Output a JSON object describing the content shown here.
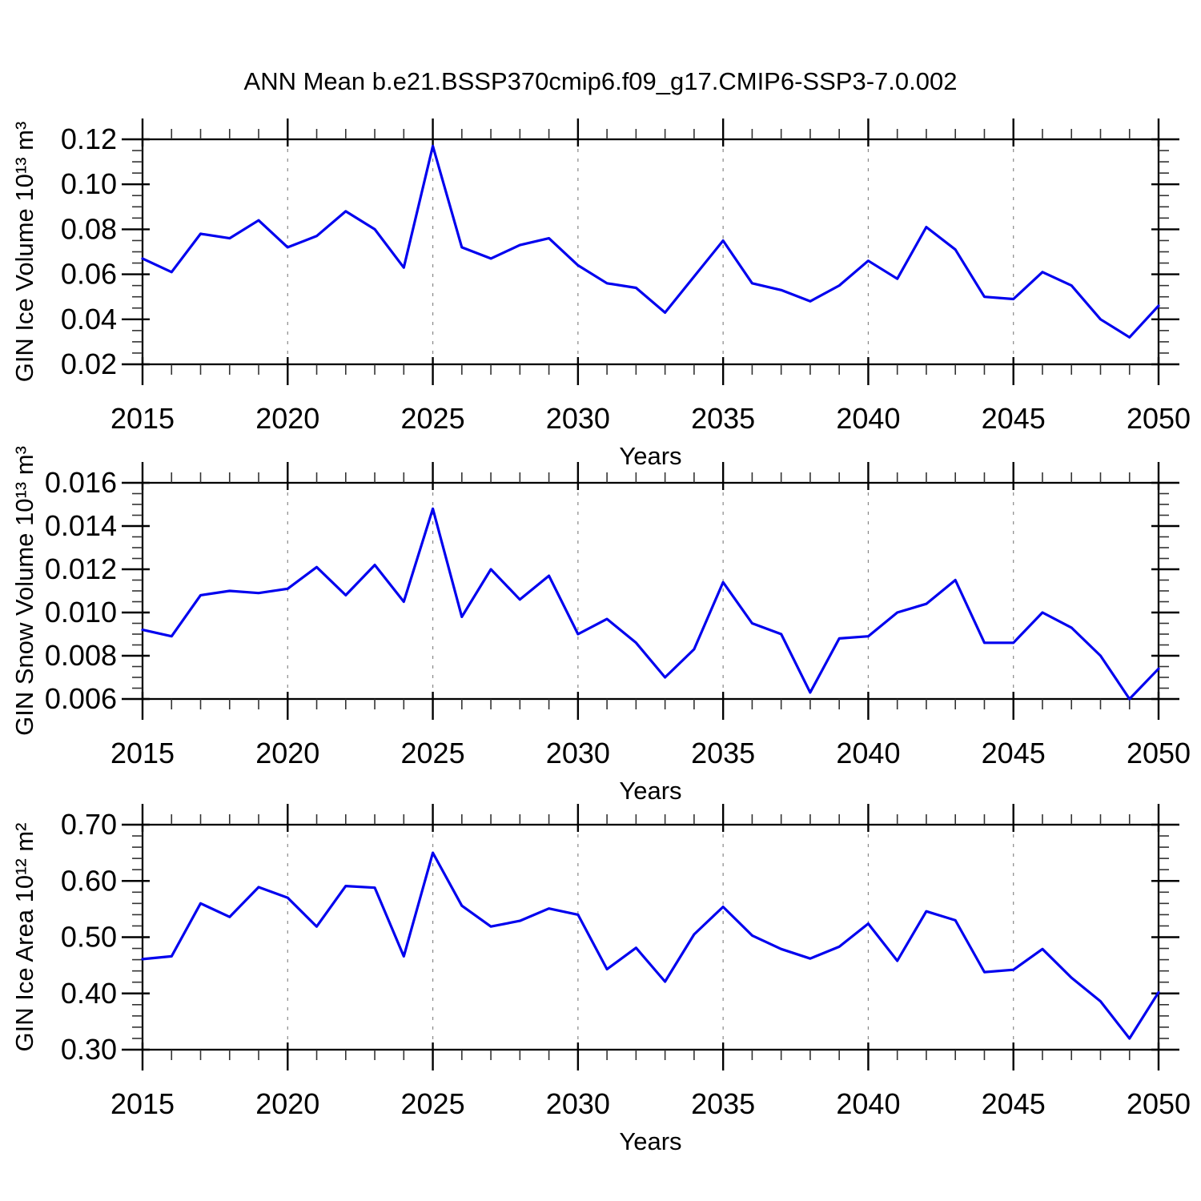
{
  "title": "ANN Mean b.e21.BSSP370cmip6.f09_g17.CMIP6-SSP3-7.0.002",
  "figure": {
    "background": "#ffffff",
    "line_color": "#0000ee",
    "grid_color": "#888888",
    "axis_color": "#000000",
    "minor_tick_color": "#333333",
    "text_color": "#000000"
  },
  "chart_data": [
    {
      "type": "line",
      "name": "gin-ice-volume",
      "ylabel": "GIN Ice Volume 10¹³ m³",
      "xlabel": "Years",
      "legend": "none",
      "grid": "vertical-dashed",
      "ylim": [
        0.02,
        0.12
      ],
      "yticks": [
        0.02,
        0.04,
        0.06,
        0.08,
        0.1,
        0.12
      ],
      "ytick_labels": [
        "0.02",
        "0.04",
        "0.06",
        "0.08",
        "0.10",
        "0.12"
      ],
      "yminor_step": 0.005,
      "xlim": [
        2015,
        2050
      ],
      "xticks": [
        2015,
        2020,
        2025,
        2030,
        2035,
        2040,
        2045,
        2050
      ],
      "xtick_labels": [
        "2015",
        "2020",
        "2025",
        "2030",
        "2035",
        "2040",
        "2045",
        "2050"
      ],
      "xminor_step": 1,
      "x": [
        2015,
        2016,
        2017,
        2018,
        2019,
        2020,
        2021,
        2022,
        2023,
        2024,
        2025,
        2026,
        2027,
        2028,
        2029,
        2030,
        2031,
        2032,
        2033,
        2034,
        2035,
        2036,
        2037,
        2038,
        2039,
        2040,
        2041,
        2042,
        2043,
        2044,
        2045,
        2046,
        2047,
        2048,
        2049,
        2050
      ],
      "values": [
        0.067,
        0.061,
        0.078,
        0.076,
        0.084,
        0.072,
        0.077,
        0.088,
        0.08,
        0.063,
        0.117,
        0.072,
        0.067,
        0.073,
        0.076,
        0.064,
        0.056,
        0.054,
        0.043,
        0.059,
        0.075,
        0.056,
        0.053,
        0.048,
        0.055,
        0.066,
        0.058,
        0.081,
        0.071,
        0.05,
        0.049,
        0.061,
        0.055,
        0.04,
        0.032,
        0.046
      ]
    },
    {
      "type": "line",
      "name": "gin-snow-volume",
      "ylabel": "GIN Snow Volume 10¹³ m³",
      "xlabel": "Years",
      "legend": "none",
      "grid": "vertical-dashed",
      "ylim": [
        0.006,
        0.016
      ],
      "yticks": [
        0.006,
        0.008,
        0.01,
        0.012,
        0.014,
        0.016
      ],
      "ytick_labels": [
        "0.006",
        "0.008",
        "0.010",
        "0.012",
        "0.014",
        "0.016"
      ],
      "yminor_step": 0.0005,
      "xlim": [
        2015,
        2050
      ],
      "xticks": [
        2015,
        2020,
        2025,
        2030,
        2035,
        2040,
        2045,
        2050
      ],
      "xtick_labels": [
        "2015",
        "2020",
        "2025",
        "2030",
        "2035",
        "2040",
        "2045",
        "2050"
      ],
      "xminor_step": 1,
      "x": [
        2015,
        2016,
        2017,
        2018,
        2019,
        2020,
        2021,
        2022,
        2023,
        2024,
        2025,
        2026,
        2027,
        2028,
        2029,
        2030,
        2031,
        2032,
        2033,
        2034,
        2035,
        2036,
        2037,
        2038,
        2039,
        2040,
        2041,
        2042,
        2043,
        2044,
        2045,
        2046,
        2047,
        2048,
        2049,
        2050
      ],
      "values": [
        0.0092,
        0.0089,
        0.0108,
        0.011,
        0.0109,
        0.0111,
        0.0121,
        0.0108,
        0.0122,
        0.0105,
        0.0148,
        0.0098,
        0.012,
        0.0106,
        0.0117,
        0.009,
        0.0097,
        0.0086,
        0.007,
        0.0083,
        0.0114,
        0.0095,
        0.009,
        0.0063,
        0.0088,
        0.0089,
        0.01,
        0.0104,
        0.0115,
        0.0086,
        0.0086,
        0.01,
        0.0093,
        0.008,
        0.006,
        0.0074
      ]
    },
    {
      "type": "line",
      "name": "gin-ice-area",
      "ylabel": "GIN Ice Area 10¹² m²",
      "xlabel": "Years",
      "legend": "none",
      "grid": "vertical-dashed",
      "ylim": [
        0.3,
        0.7
      ],
      "yticks": [
        0.3,
        0.4,
        0.5,
        0.6,
        0.7
      ],
      "ytick_labels": [
        "0.30",
        "0.40",
        "0.50",
        "0.60",
        "0.70"
      ],
      "yminor_step": 0.02,
      "xlim": [
        2015,
        2050
      ],
      "xticks": [
        2015,
        2020,
        2025,
        2030,
        2035,
        2040,
        2045,
        2050
      ],
      "xtick_labels": [
        "2015",
        "2020",
        "2025",
        "2030",
        "2035",
        "2040",
        "2045",
        "2050"
      ],
      "xminor_step": 1,
      "x": [
        2015,
        2016,
        2017,
        2018,
        2019,
        2020,
        2021,
        2022,
        2023,
        2024,
        2025,
        2026,
        2027,
        2028,
        2029,
        2030,
        2031,
        2032,
        2033,
        2034,
        2035,
        2036,
        2037,
        2038,
        2039,
        2040,
        2041,
        2042,
        2043,
        2044,
        2045,
        2046,
        2047,
        2048,
        2049,
        2050
      ],
      "values": [
        0.461,
        0.466,
        0.56,
        0.536,
        0.589,
        0.57,
        0.519,
        0.591,
        0.588,
        0.466,
        0.65,
        0.556,
        0.519,
        0.529,
        0.551,
        0.54,
        0.443,
        0.481,
        0.421,
        0.505,
        0.554,
        0.503,
        0.479,
        0.462,
        0.483,
        0.524,
        0.458,
        0.546,
        0.53,
        0.438,
        0.442,
        0.479,
        0.428,
        0.386,
        0.32,
        0.402
      ]
    }
  ]
}
